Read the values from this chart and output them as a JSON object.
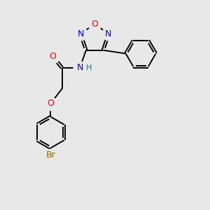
{
  "bg_color": "#e8e8e8",
  "bond_color": "#000000",
  "o_color": "#ff0000",
  "n_color": "#0000ff",
  "br_color": "#996600",
  "h_color": "#008080",
  "line_width": 1.4,
  "figsize": [
    3.0,
    3.0
  ],
  "dpi": 100,
  "xlim": [
    0,
    10
  ],
  "ylim": [
    0,
    10
  ]
}
